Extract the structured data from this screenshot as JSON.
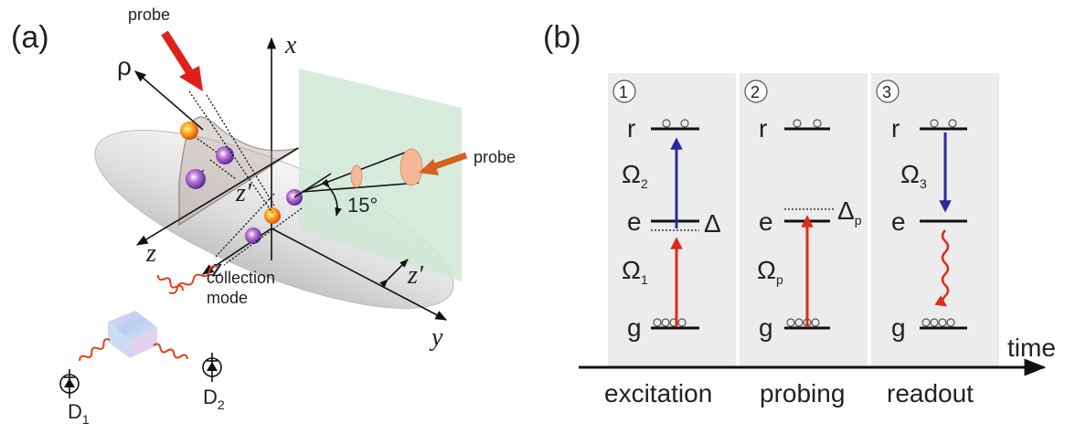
{
  "panel_a": {
    "label": "(a)",
    "probe_top": "probe",
    "probe_side": "probe",
    "axis_x": "x",
    "axis_y": "y",
    "axis_z": "z",
    "axis_z_lower": "z",
    "axis_rho": "ρ",
    "axis_zprime": "z'",
    "axis_zprime_right": "z'",
    "angle": "15°",
    "collection_line1": "collection",
    "collection_line2": "mode",
    "detector1": "D",
    "detector1_sub": "1",
    "detector2": "D",
    "detector2_sub": "2",
    "center_mark": "×"
  },
  "panel_b": {
    "label": "(b)",
    "time_label": "time",
    "stages": [
      {
        "number": "1",
        "name": "excitation",
        "level_r": "r",
        "level_e": "e",
        "level_g": "g",
        "upper_rabi": "Ω",
        "upper_rabi_sub": "2",
        "lower_rabi": "Ω",
        "lower_rabi_sub": "1",
        "detuning": "Δ"
      },
      {
        "number": "2",
        "name": "probing",
        "level_r": "r",
        "level_e": "e",
        "level_g": "g",
        "lower_rabi": "Ω",
        "lower_rabi_sub": "p",
        "detuning": "Δ",
        "detuning_sub": "p"
      },
      {
        "number": "3",
        "name": "readout",
        "level_r": "r",
        "level_e": "e",
        "level_g": "g",
        "upper_rabi": "Ω",
        "upper_rabi_sub": "3"
      }
    ],
    "colors": {
      "blue_arrow": "#2a2aa0",
      "red_arrow": "#e02a1a",
      "panel_bg": "#ececec"
    }
  }
}
